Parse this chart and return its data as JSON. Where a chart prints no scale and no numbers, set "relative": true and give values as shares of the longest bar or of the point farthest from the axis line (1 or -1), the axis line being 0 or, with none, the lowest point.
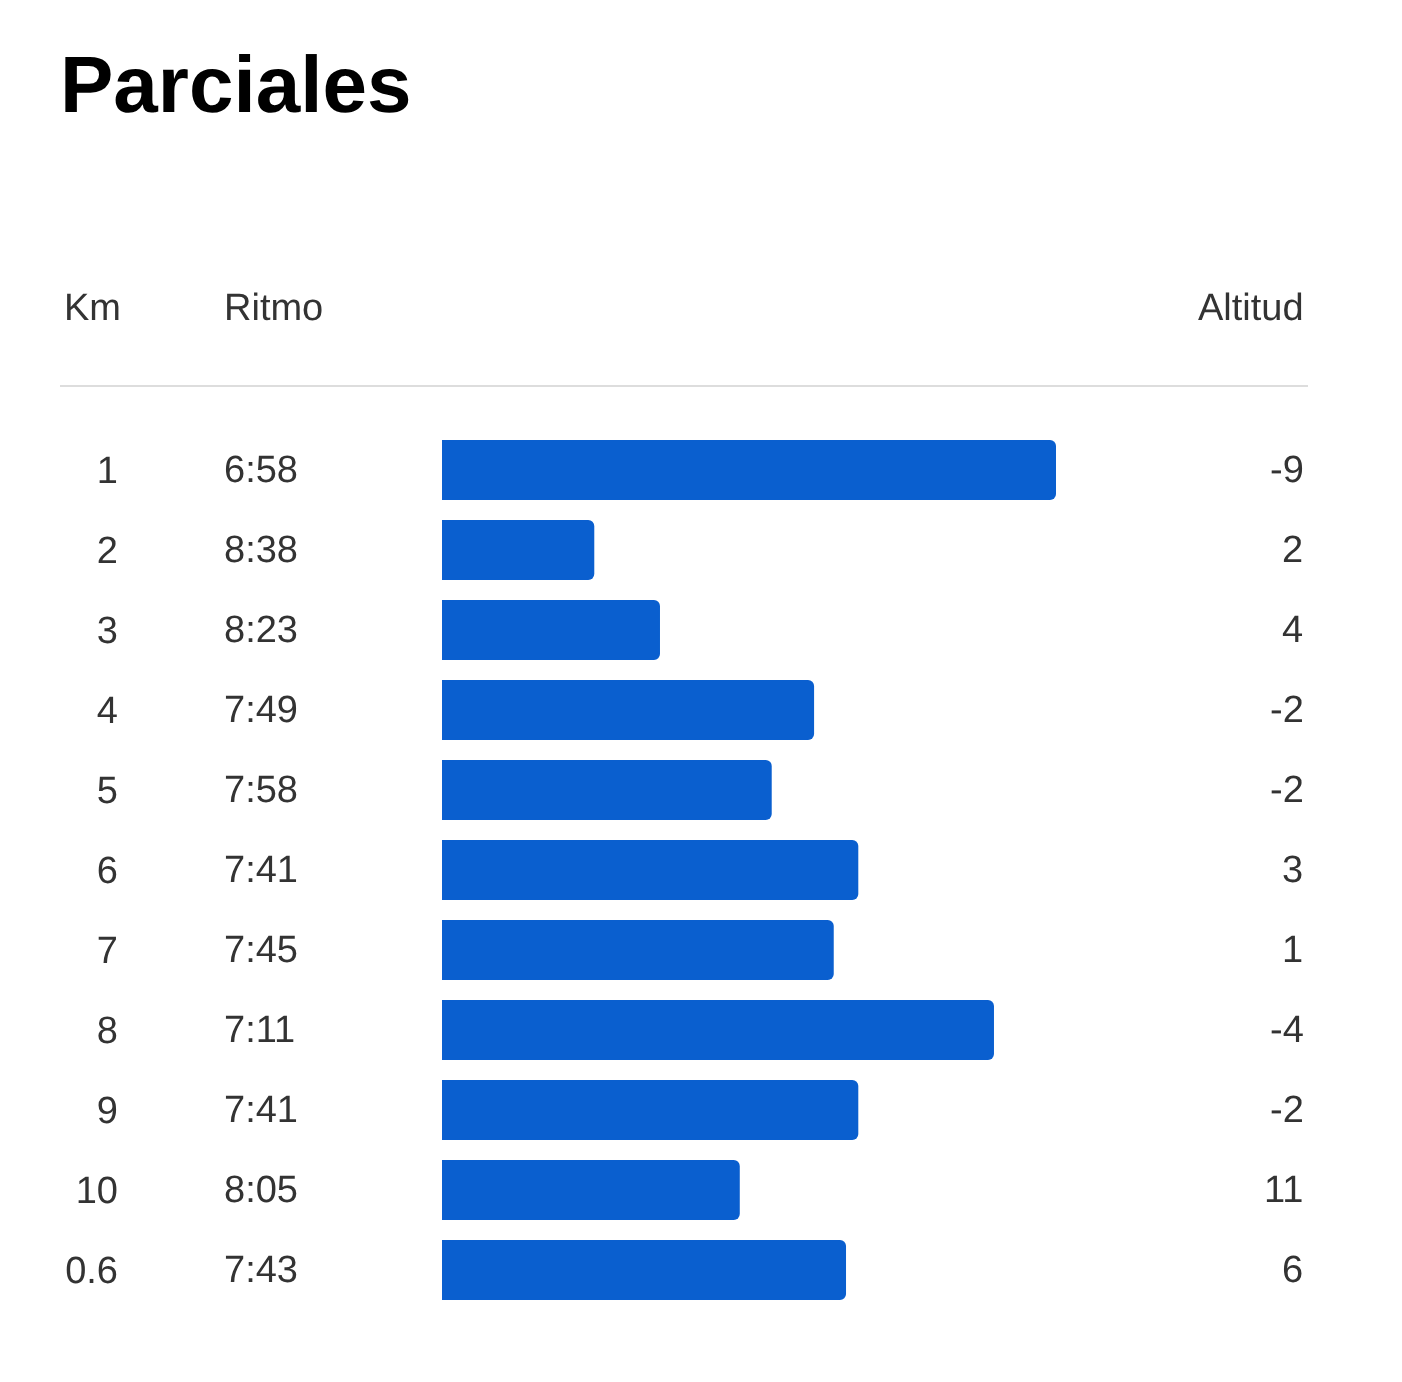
{
  "chart_data": {
    "type": "bar",
    "orientation": "horizontal",
    "relative": true,
    "title": "Parciales",
    "ylabel": "Km",
    "categories": [
      "1",
      "2",
      "3",
      "4",
      "5",
      "6",
      "7",
      "8",
      "9",
      "10",
      "0.6"
    ],
    "values": [
      1,
      0.248,
      0.355,
      0.606,
      0.537,
      0.678,
      0.638,
      0.899,
      0.678,
      0.485,
      0.658
    ],
    "tick_labels": "y",
    "color": "#0a5fcf",
    "annotations": [
      "Ritmo",
      "Altitud",
      "6:58",
      "8:38",
      "8:23",
      "7:49",
      "7:58",
      "7:41",
      "7:45",
      "7:11",
      "7:41",
      "8:05",
      "7:43",
      "-9",
      "2",
      "4",
      "-2",
      "-2",
      "3",
      "1",
      "-4",
      "-2",
      "11",
      "6"
    ]
  }
}
